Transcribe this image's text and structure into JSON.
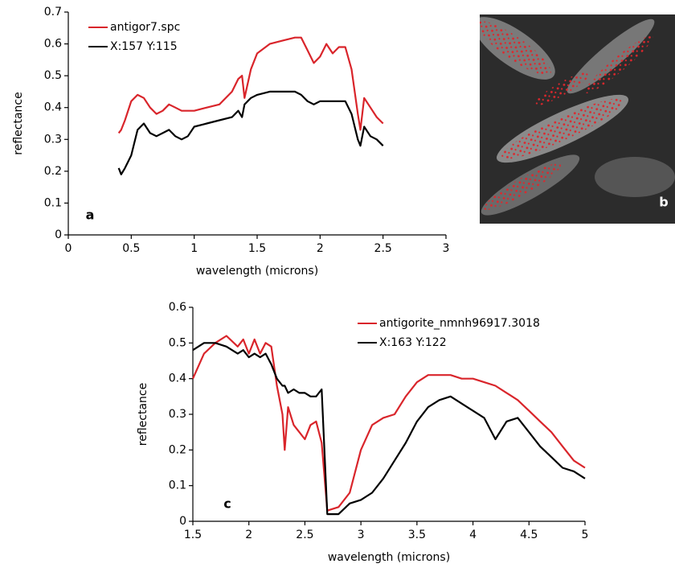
{
  "chart_data": [
    {
      "type": "line",
      "annotation": "a",
      "xlabel": "wavelength (microns)",
      "ylabel": "reflectance",
      "xlim": [
        0,
        3
      ],
      "ylim": [
        0,
        0.7
      ],
      "xticks": [
        0,
        0.5,
        1,
        1.5,
        2,
        2.5,
        3
      ],
      "yticks": [
        0,
        0.1,
        0.2,
        0.3,
        0.4,
        0.5,
        0.6,
        0.7
      ],
      "legend": "upper left",
      "grid": false,
      "x": [
        0.4,
        0.42,
        0.45,
        0.5,
        0.55,
        0.6,
        0.65,
        0.7,
        0.75,
        0.8,
        0.85,
        0.9,
        0.95,
        1.0,
        1.1,
        1.2,
        1.3,
        1.35,
        1.38,
        1.4,
        1.45,
        1.5,
        1.6,
        1.7,
        1.8,
        1.85,
        1.9,
        1.95,
        2.0,
        2.05,
        2.1,
        2.15,
        2.2,
        2.25,
        2.3,
        2.32,
        2.35,
        2.4,
        2.45,
        2.5
      ],
      "series": [
        {
          "name": "antigor7.spc",
          "color": "#d9252b",
          "values": [
            0.32,
            0.33,
            0.36,
            0.42,
            0.44,
            0.43,
            0.4,
            0.38,
            0.39,
            0.41,
            0.4,
            0.39,
            0.39,
            0.39,
            0.4,
            0.41,
            0.45,
            0.49,
            0.5,
            0.43,
            0.52,
            0.57,
            0.6,
            0.61,
            0.62,
            0.62,
            0.58,
            0.54,
            0.56,
            0.6,
            0.57,
            0.59,
            0.59,
            0.52,
            0.38,
            0.33,
            0.43,
            0.4,
            0.37,
            0.35
          ]
        },
        {
          "name": "X:157 Y:115",
          "color": "#000000",
          "values": [
            0.21,
            0.19,
            0.21,
            0.25,
            0.33,
            0.35,
            0.32,
            0.31,
            0.32,
            0.33,
            0.31,
            0.3,
            0.31,
            0.34,
            0.35,
            0.36,
            0.37,
            0.39,
            0.37,
            0.41,
            0.43,
            0.44,
            0.45,
            0.45,
            0.45,
            0.44,
            0.42,
            0.41,
            0.42,
            0.42,
            0.42,
            0.42,
            0.42,
            0.38,
            0.3,
            0.28,
            0.34,
            0.31,
            0.3,
            0.28
          ]
        }
      ]
    },
    {
      "type": "line",
      "annotation": "c",
      "xlabel": "wavelength (microns)",
      "ylabel": "reflectance",
      "xlim": [
        1.5,
        5
      ],
      "ylim": [
        0,
        0.6
      ],
      "xticks": [
        1.5,
        2,
        2.5,
        3,
        3.5,
        4,
        4.5,
        5
      ],
      "yticks": [
        0,
        0.1,
        0.2,
        0.3,
        0.4,
        0.5,
        0.6
      ],
      "legend": "upper right",
      "grid": false,
      "x": [
        1.5,
        1.6,
        1.7,
        1.8,
        1.9,
        1.95,
        2.0,
        2.05,
        2.1,
        2.15,
        2.2,
        2.25,
        2.3,
        2.32,
        2.35,
        2.4,
        2.45,
        2.5,
        2.55,
        2.6,
        2.65,
        2.7,
        2.8,
        2.9,
        3.0,
        3.1,
        3.2,
        3.3,
        3.4,
        3.5,
        3.6,
        3.7,
        3.8,
        3.9,
        4.0,
        4.1,
        4.2,
        4.3,
        4.4,
        4.5,
        4.6,
        4.7,
        4.8,
        4.9,
        5.0
      ],
      "series": [
        {
          "name": "antigorite_nmnh96917.3018",
          "color": "#d9252b",
          "values": [
            0.4,
            0.47,
            0.5,
            0.52,
            0.49,
            0.51,
            0.47,
            0.51,
            0.47,
            0.5,
            0.49,
            0.38,
            0.3,
            0.2,
            0.32,
            0.27,
            0.25,
            0.23,
            0.27,
            0.28,
            0.22,
            0.03,
            0.04,
            0.08,
            0.2,
            0.27,
            0.29,
            0.3,
            0.35,
            0.39,
            0.41,
            0.41,
            0.41,
            0.4,
            0.4,
            0.39,
            0.38,
            0.36,
            0.34,
            0.31,
            0.28,
            0.25,
            0.21,
            0.17,
            0.15
          ]
        },
        {
          "name": "X:163 Y:122",
          "color": "#000000",
          "values": [
            0.48,
            0.5,
            0.5,
            0.49,
            0.47,
            0.48,
            0.46,
            0.47,
            0.46,
            0.47,
            0.44,
            0.4,
            0.38,
            0.38,
            0.36,
            0.37,
            0.36,
            0.36,
            0.35,
            0.35,
            0.37,
            0.02,
            0.02,
            0.05,
            0.06,
            0.08,
            0.12,
            0.17,
            0.22,
            0.28,
            0.32,
            0.34,
            0.35,
            0.33,
            0.31,
            0.29,
            0.23,
            0.28,
            0.29,
            0.25,
            0.21,
            0.18,
            0.15,
            0.14,
            0.12
          ]
        }
      ]
    }
  ],
  "image_panel": {
    "label": "b"
  }
}
